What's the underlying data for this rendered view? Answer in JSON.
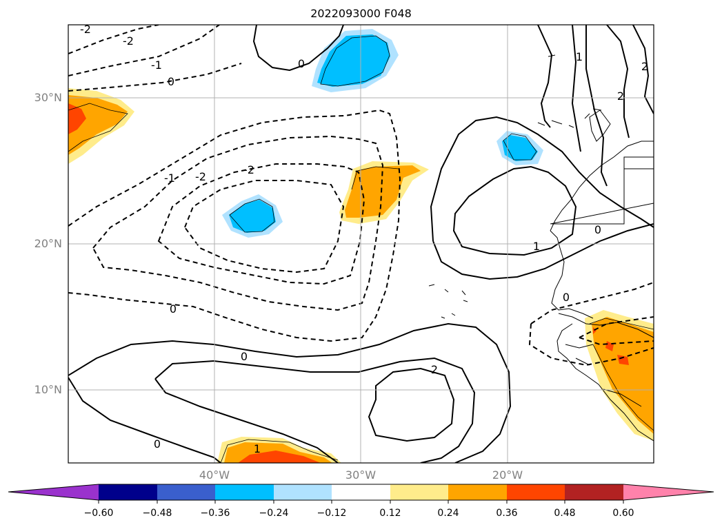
{
  "title": "2022093000 F048",
  "map": {
    "lat_labels": [
      "30°N",
      "20°N",
      "10°N"
    ],
    "lon_labels": [
      "40°W",
      "30°W",
      "20°W"
    ],
    "grid": true
  },
  "contour_labels": [
    {
      "text": "-2",
      "name": "contour-label-neg2-top"
    },
    {
      "text": "-2",
      "name": "contour-label-neg2-nw"
    },
    {
      "text": "-1",
      "name": "contour-label-neg1-nw"
    },
    {
      "text": "0",
      "name": "contour-label-0-nw"
    },
    {
      "text": "0",
      "name": "contour-label-0-north"
    },
    {
      "text": "-1",
      "name": "contour-label-neg1-center"
    },
    {
      "text": "-2",
      "name": "contour-label-neg2-center"
    },
    {
      "text": "-2",
      "name": "contour-label-neg2-inner"
    },
    {
      "text": "0",
      "name": "contour-label-0-center"
    },
    {
      "text": "0",
      "name": "contour-label-0-south"
    },
    {
      "text": "2",
      "name": "contour-label-2-south"
    },
    {
      "text": "0",
      "name": "contour-label-0-southwest"
    },
    {
      "text": "1",
      "name": "contour-label-1-bottom"
    },
    {
      "text": "1",
      "name": "contour-label-1-east"
    },
    {
      "text": "0",
      "name": "contour-label-0-east"
    },
    {
      "text": "0",
      "name": "contour-label-0-africa"
    },
    {
      "text": "1",
      "name": "contour-label-1-ne"
    },
    {
      "text": "2",
      "name": "contour-label-2-ne"
    },
    {
      "text": "2",
      "name": "contour-label-2-ne-edge"
    }
  ],
  "colorbar": {
    "ticks": [
      "−0.60",
      "−0.48",
      "−0.36",
      "−0.24",
      "−0.12",
      "0.12",
      "0.24",
      "0.36",
      "0.48",
      "0.60"
    ],
    "colors": [
      "#9a32cd",
      "#00008b",
      "#3a5fcd",
      "#00bfff",
      "#b0e2ff",
      "#ffffff",
      "#ffec8b",
      "#ffa500",
      "#ff4500",
      "#b22222",
      "#ff82ab"
    ]
  }
}
